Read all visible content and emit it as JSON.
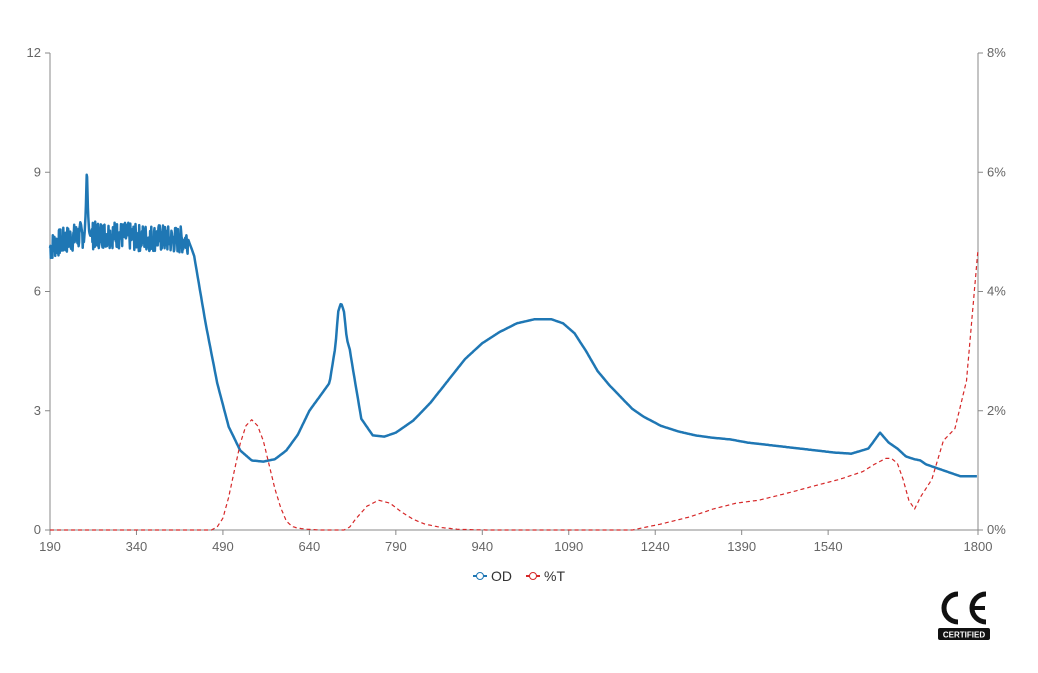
{
  "chart_data": {
    "type": "line",
    "title": "",
    "xlabel": "",
    "ylabel": "",
    "x_ticks": [
      "190",
      "340",
      "490",
      "640",
      "790",
      "940",
      "1090",
      "1240",
      "1390",
      "1540",
      "1800"
    ],
    "x_range": [
      190,
      1800
    ],
    "y_left_ticks": [
      "0",
      "3",
      "6",
      "9",
      "12"
    ],
    "y_left_range": [
      0,
      12
    ],
    "y_right_ticks": [
      "0%",
      "2%",
      "4%",
      "6%",
      "8%"
    ],
    "y_right_range": [
      0,
      8
    ],
    "legend_position": "bottom-center",
    "series": [
      {
        "name": "OD",
        "axis": "left",
        "color": "#1f77b4",
        "style": "solid",
        "noise_region": [
          190,
          430
        ],
        "x": [
          190,
          200,
          220,
          250,
          252,
          254,
          256,
          258,
          260,
          290,
          320,
          340,
          360,
          380,
          400,
          430,
          440,
          460,
          480,
          500,
          520,
          540,
          560,
          580,
          600,
          620,
          640,
          660,
          675,
          685,
          690,
          695,
          700,
          705,
          710,
          715,
          730,
          750,
          770,
          790,
          820,
          850,
          880,
          910,
          940,
          970,
          1000,
          1030,
          1060,
          1080,
          1100,
          1120,
          1140,
          1160,
          1180,
          1200,
          1220,
          1250,
          1280,
          1310,
          1340,
          1370,
          1400,
          1430,
          1460,
          1490,
          1520,
          1550,
          1580,
          1610,
          1630,
          1645,
          1660,
          1675,
          1690,
          1700,
          1710,
          1730,
          1750,
          1770,
          1800
        ],
        "y": [
          7.1,
          7.2,
          7.3,
          7.45,
          8.0,
          9.1,
          8.0,
          7.5,
          7.4,
          7.45,
          7.4,
          7.35,
          7.35,
          7.35,
          7.3,
          7.3,
          6.9,
          5.2,
          3.7,
          2.6,
          2.0,
          1.75,
          1.72,
          1.78,
          2.0,
          2.4,
          3.0,
          3.4,
          3.7,
          4.6,
          5.5,
          5.72,
          5.5,
          4.8,
          4.55,
          4.1,
          2.8,
          2.38,
          2.35,
          2.45,
          2.75,
          3.2,
          3.75,
          4.3,
          4.7,
          4.98,
          5.2,
          5.3,
          5.3,
          5.2,
          4.95,
          4.5,
          4.0,
          3.65,
          3.35,
          3.05,
          2.85,
          2.62,
          2.48,
          2.38,
          2.32,
          2.28,
          2.2,
          2.15,
          2.1,
          2.05,
          2.0,
          1.95,
          1.92,
          2.05,
          2.45,
          2.2,
          2.05,
          1.85,
          1.78,
          1.75,
          1.65,
          1.55,
          1.45,
          1.35,
          1.35
        ]
      },
      {
        "name": "%T",
        "axis": "right",
        "color": "#d62728",
        "style": "dashed",
        "x": [
          190,
          300,
          400,
          470,
          480,
          490,
          500,
          510,
          520,
          530,
          540,
          550,
          560,
          570,
          580,
          590,
          600,
          610,
          620,
          640,
          660,
          700,
          710,
          720,
          740,
          760,
          780,
          800,
          820,
          840,
          870,
          900,
          950,
          1000,
          1100,
          1150,
          1200,
          1250,
          1300,
          1340,
          1380,
          1420,
          1470,
          1520,
          1560,
          1600,
          1620,
          1640,
          1650,
          1660,
          1670,
          1680,
          1690,
          1700,
          1720,
          1740,
          1760,
          1780,
          1800
        ],
        "y": [
          0,
          0,
          0,
          0,
          0.05,
          0.2,
          0.55,
          1.0,
          1.45,
          1.75,
          1.85,
          1.75,
          1.5,
          1.1,
          0.7,
          0.38,
          0.15,
          0.06,
          0.03,
          0.01,
          0,
          0,
          0.05,
          0.18,
          0.4,
          0.5,
          0.45,
          0.3,
          0.18,
          0.1,
          0.04,
          0.01,
          0,
          0,
          0,
          0,
          0,
          0.1,
          0.22,
          0.35,
          0.45,
          0.5,
          0.62,
          0.75,
          0.85,
          0.98,
          1.1,
          1.2,
          1.2,
          1.12,
          0.85,
          0.5,
          0.35,
          0.55,
          0.85,
          1.5,
          1.7,
          2.5,
          4.7
        ]
      }
    ]
  },
  "legend": {
    "od_label": "OD",
    "t_label": "%T"
  },
  "badge": {
    "mark": "CE",
    "caption": "CERTIFIED"
  }
}
